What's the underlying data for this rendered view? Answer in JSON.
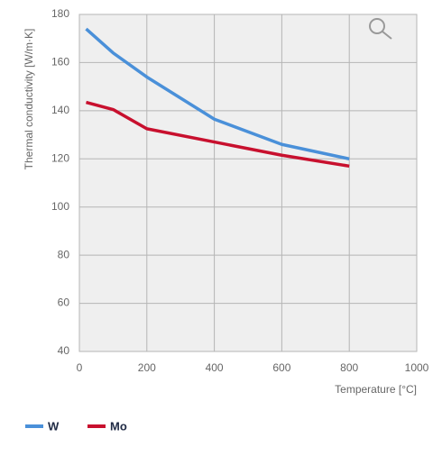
{
  "chart_data": {
    "type": "line",
    "x_label": "Temperature [°C]",
    "y_label": "Thermal conductivity [W/m·K]",
    "xlim": [
      0,
      1000
    ],
    "xticks": [
      0,
      200,
      400,
      600,
      800,
      1000
    ],
    "ylim": [
      40,
      180
    ],
    "yticks": [
      40,
      60,
      80,
      100,
      120,
      140,
      160,
      180
    ],
    "grid": true,
    "series": [
      {
        "name": "W",
        "color": "#4a90d9",
        "x": [
          20,
          100,
          200,
          400,
          600,
          800
        ],
        "values": [
          174,
          164,
          154,
          136.5,
          126,
          120
        ]
      },
      {
        "name": "Mo",
        "color": "#c8102e",
        "x": [
          20,
          100,
          200,
          400,
          600,
          800
        ],
        "values": [
          143.5,
          140.5,
          132.5,
          127,
          121.5,
          117
        ]
      }
    ]
  }
}
